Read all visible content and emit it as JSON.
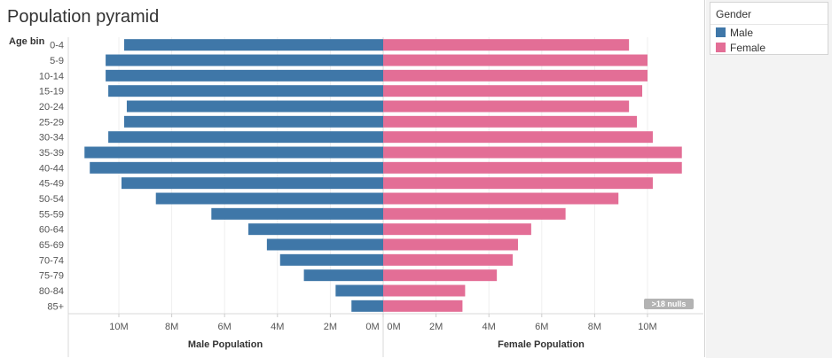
{
  "title": "Population pyramid",
  "legend": {
    "title": "Gender",
    "items": [
      {
        "label": "Male",
        "color": "#3f77a8"
      },
      {
        "label": "Female",
        "color": "#e36e96"
      }
    ]
  },
  "nulls_badge": ">18 nulls",
  "chart_data": {
    "type": "bar",
    "orientation": "horizontal",
    "layout": "population pyramid",
    "row_axis_title": "Age bin",
    "categories": [
      "0-4",
      "5-9",
      "10-14",
      "15-19",
      "20-24",
      "25-29",
      "30-34",
      "35-39",
      "40-44",
      "45-49",
      "50-54",
      "55-59",
      "60-64",
      "65-69",
      "70-74",
      "75-79",
      "80-84",
      "85+"
    ],
    "series": [
      {
        "name": "Male",
        "color": "#3f77a8",
        "axis_title": "Male Population",
        "direction": "left",
        "values": [
          9.8,
          10.5,
          10.5,
          10.4,
          9.7,
          9.8,
          10.4,
          11.3,
          11.1,
          9.9,
          8.6,
          6.5,
          5.1,
          4.4,
          3.9,
          3.0,
          1.8,
          1.2
        ],
        "unit": "M",
        "xlim": [
          0,
          12
        ],
        "ticks": [
          "10M",
          "8M",
          "6M",
          "4M",
          "2M",
          "0M"
        ]
      },
      {
        "name": "Female",
        "color": "#e36e96",
        "axis_title": "Female Population",
        "direction": "right",
        "values": [
          9.3,
          10.0,
          10.0,
          9.8,
          9.3,
          9.6,
          10.2,
          11.3,
          11.3,
          10.2,
          8.9,
          6.9,
          5.6,
          5.1,
          4.9,
          4.3,
          3.1,
          3.0
        ],
        "unit": "M",
        "xlim": [
          0,
          12
        ],
        "ticks": [
          "0M",
          "2M",
          "4M",
          "6M",
          "8M",
          "10M"
        ]
      }
    ],
    "grid": true
  }
}
